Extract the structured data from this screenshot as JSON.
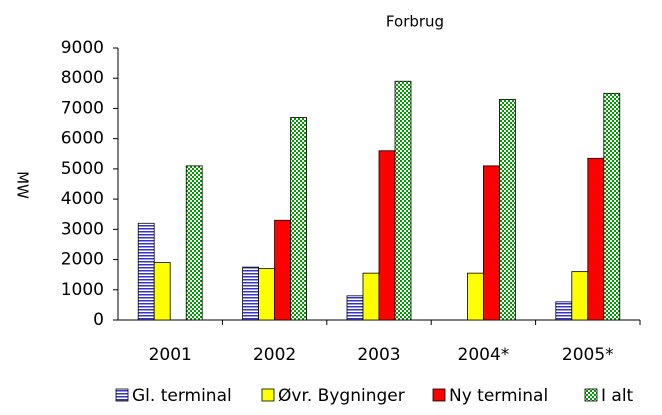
{
  "chart_data": {
    "type": "bar",
    "title": "Forbrug",
    "y_label": "MW",
    "categories": [
      "2001",
      "2002",
      "2003",
      "2004*",
      "2005*"
    ],
    "series": [
      {
        "name": "Gl. terminal",
        "color": "#3333cc",
        "values": [
          3200,
          1750,
          800,
          0,
          600
        ]
      },
      {
        "name": "Øvr.  Bygninger",
        "color": "#ffff00",
        "values": [
          1900,
          1700,
          1550,
          1550,
          1600
        ]
      },
      {
        "name": "Ny terminal",
        "color": "#ff0000",
        "values": [
          0,
          3300,
          5600,
          5100,
          5350
        ]
      },
      {
        "name": "I alt",
        "color": "#009900",
        "values": [
          5100,
          6700,
          7900,
          7300,
          7500
        ]
      }
    ],
    "ylim": [
      0,
      9000
    ],
    "yticks": [
      0,
      1000,
      2000,
      3000,
      4000,
      5000,
      6000,
      7000,
      8000,
      9000
    ],
    "legend": "bottom"
  }
}
